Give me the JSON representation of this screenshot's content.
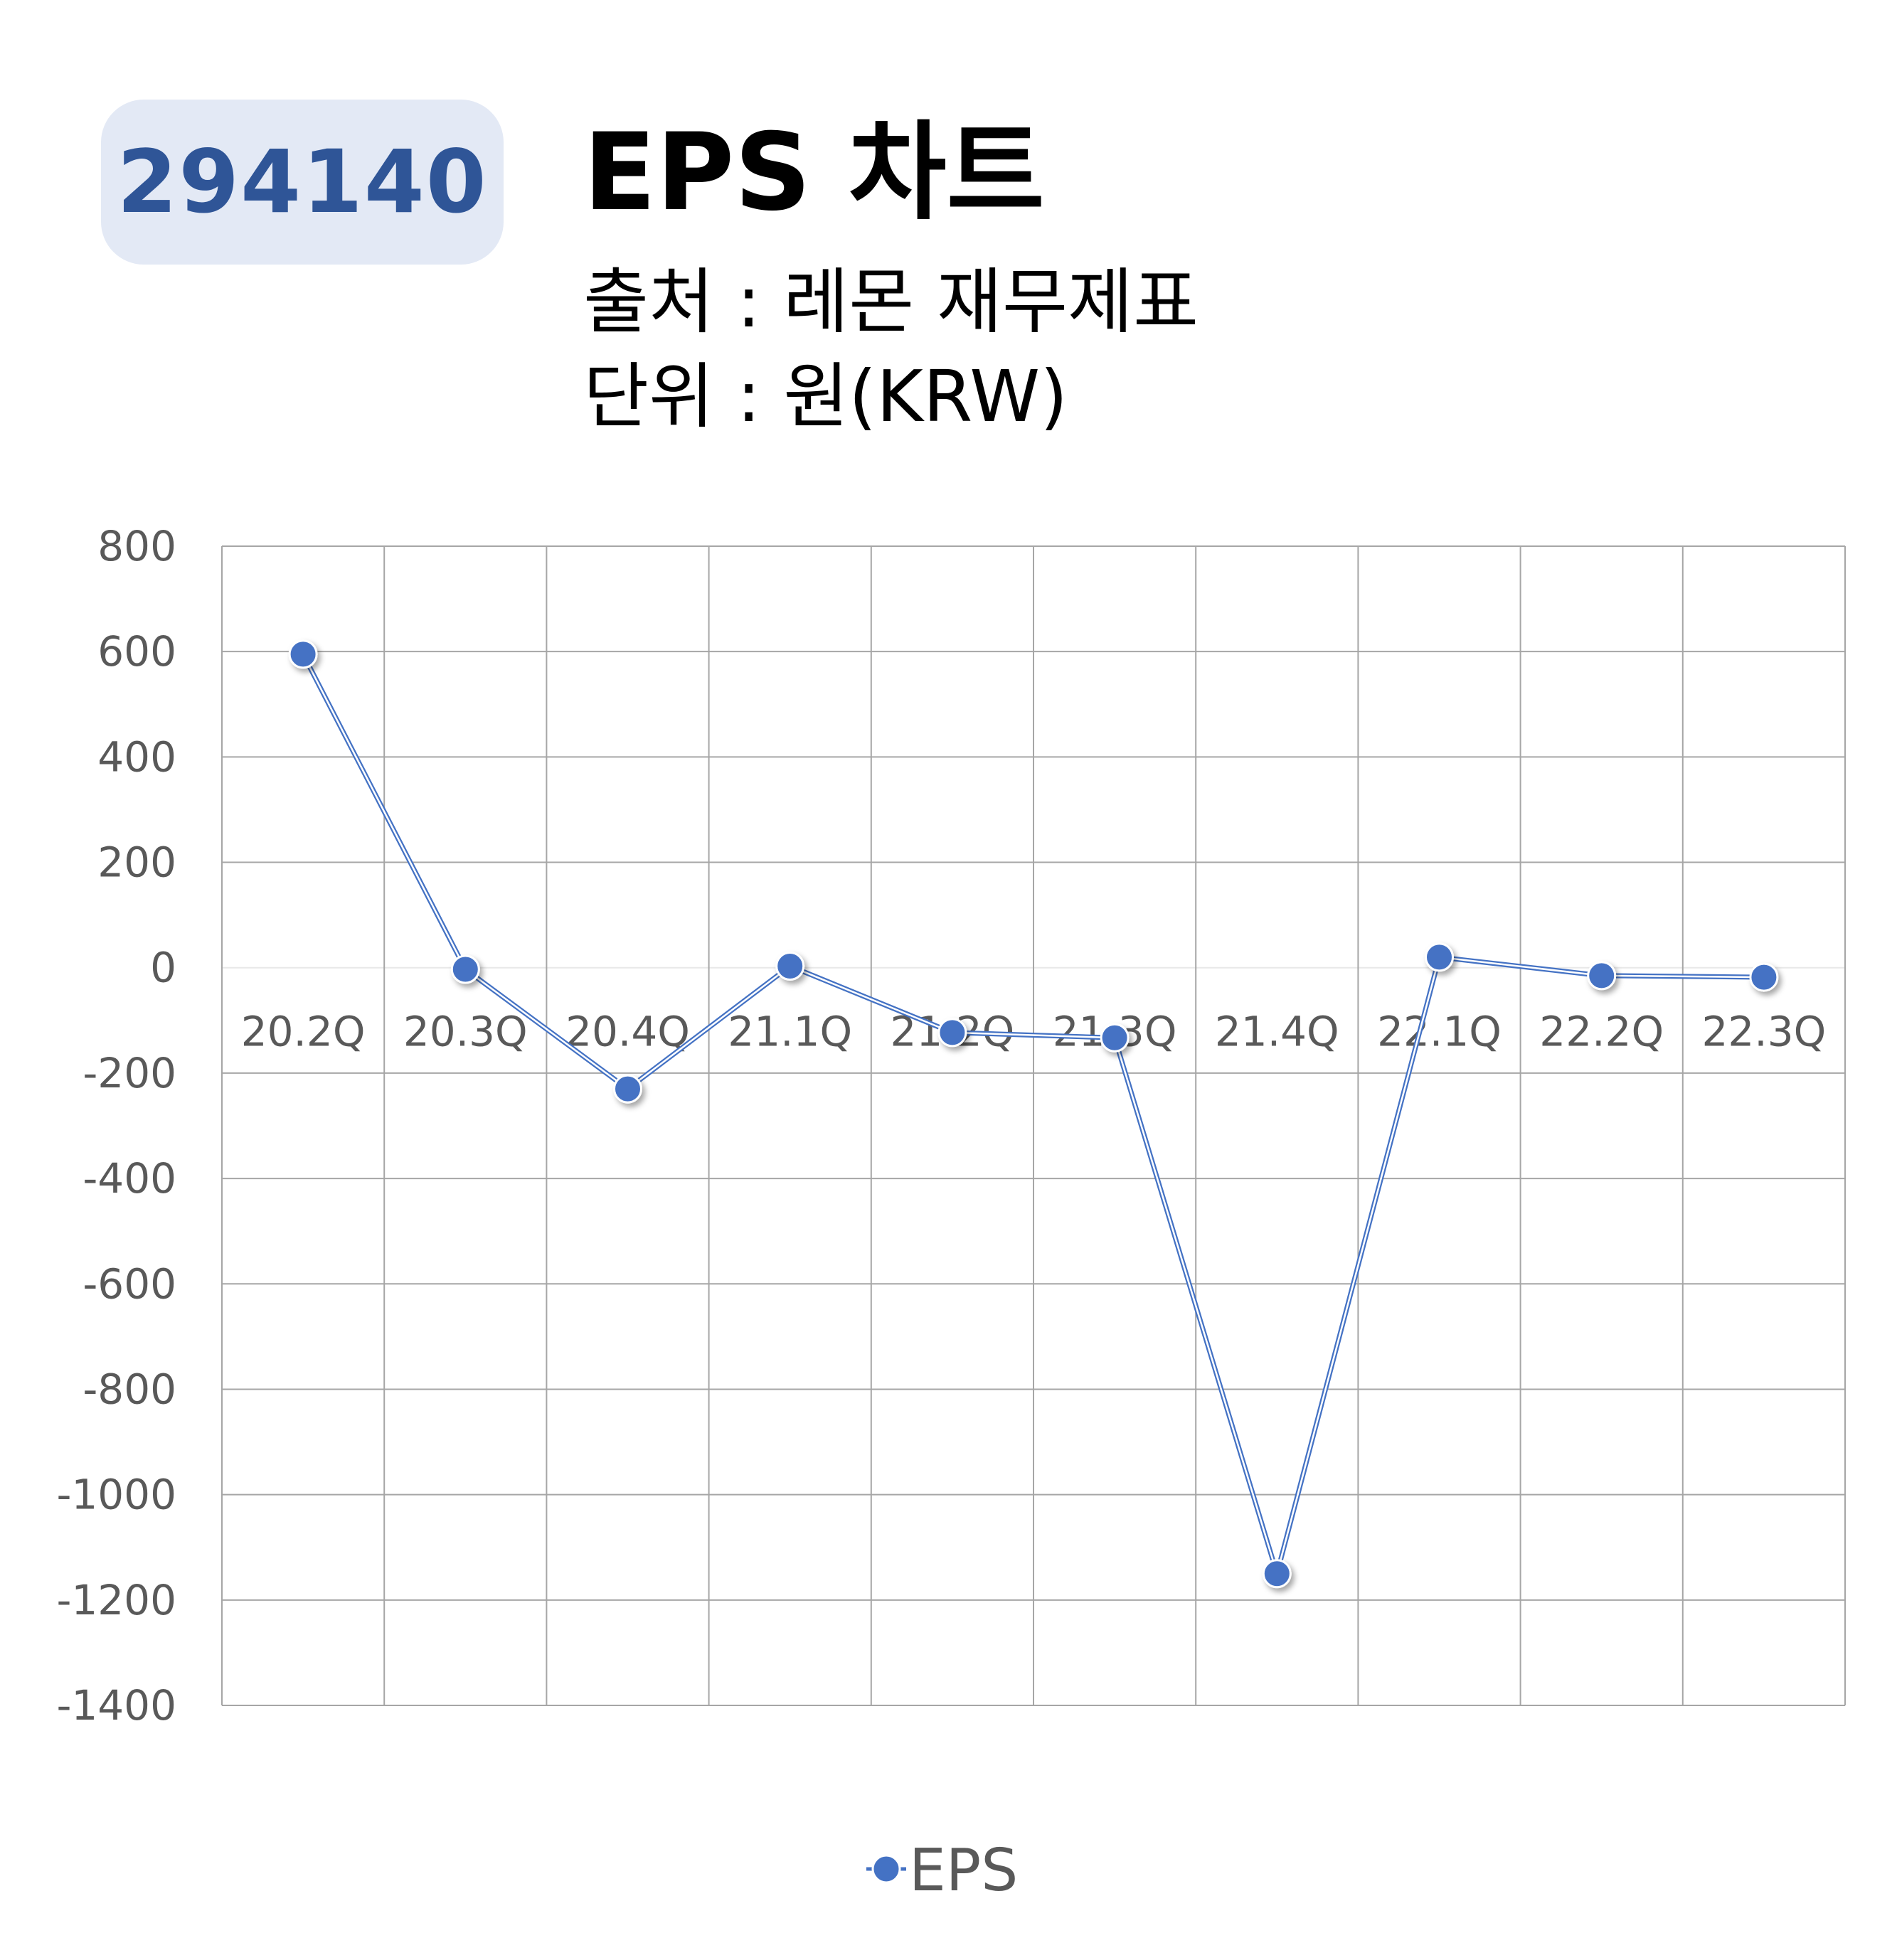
{
  "header": {
    "code": "294140",
    "title": "EPS 차트",
    "source": "출처 : 레몬 재무제표",
    "unit": "단위 : 원(KRW)"
  },
  "colors": {
    "series": "#4472c4",
    "badge_bg": "#e3e9f5",
    "badge_text": "#2f5597",
    "grid": "#a6a6a6"
  },
  "chart_data": {
    "type": "line",
    "categories": [
      "20.2Q",
      "20.3Q",
      "20.4Q",
      "21.1Q",
      "21.2Q",
      "21.3Q",
      "21.4Q",
      "22.1Q",
      "22.2Q",
      "22.3Q"
    ],
    "series": [
      {
        "name": "EPS",
        "values": [
          595,
          -3,
          -230,
          3,
          -123,
          -133,
          -1150,
          20,
          -15,
          -18
        ]
      }
    ],
    "ylim": [
      -1400,
      800
    ],
    "yticks": [
      800,
      600,
      400,
      200,
      0,
      -200,
      -400,
      -600,
      -800,
      -1000,
      -1200,
      -1400
    ],
    "grid": true,
    "legend": "bottom"
  }
}
